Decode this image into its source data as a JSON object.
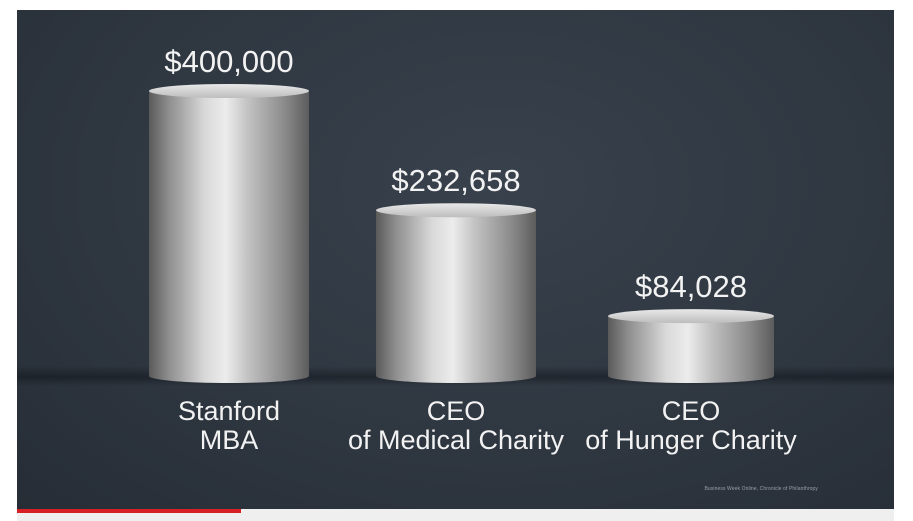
{
  "chart_data": {
    "type": "bar",
    "categories": [
      [
        "Stanford",
        "MBA"
      ],
      [
        "CEO",
        "of Medical Charity"
      ],
      [
        "CEO",
        "of Hunger Charity"
      ]
    ],
    "values": [
      400000,
      232658,
      84028
    ],
    "value_labels": [
      "$400,000",
      "$232,658",
      "$84,028"
    ],
    "title": "",
    "xlabel": "",
    "ylabel": "",
    "ylim": [
      0,
      400000
    ],
    "grid": false,
    "legend": "none",
    "bar_style": "3d-cylinder",
    "colors": {
      "background": "#2f3741",
      "bar": "#c9c9c9",
      "text": "#f2f2f2",
      "accent": "#d71f26"
    }
  },
  "source": "Business Week Online, Chronicle of Philanthropy",
  "progress": {
    "fraction": 0.255
  }
}
